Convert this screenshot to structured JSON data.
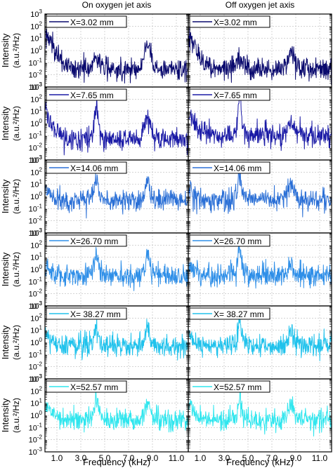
{
  "figure": {
    "col_titles": [
      "On oxygen jet axis",
      "Off oxygen jet axis"
    ],
    "xlabel": "Frequency (kHz)",
    "ylabel_line1": "Intensity",
    "ylabel_line2": "(a.u.²/Hz)"
  },
  "chart_data": {
    "type": "line",
    "layout": "6 rows x 2 columns of spectra",
    "x_range_khz": [
      0,
      12
    ],
    "x_ticks": [
      "1.0",
      "3.0",
      "5.0",
      "7.0",
      "9.0",
      "11.0"
    ],
    "x_tick_values": [
      1,
      3,
      5,
      7,
      9,
      11
    ],
    "y_scale": "log",
    "y_range": [
      0.001,
      1000
    ],
    "y_ticks": [
      {
        "base": "10",
        "exp": "3"
      },
      {
        "base": "10",
        "exp": "2"
      },
      {
        "base": "10",
        "exp": "1"
      },
      {
        "base": "10",
        "exp": "0"
      },
      {
        "base": "10",
        "exp": "-1"
      },
      {
        "base": "10",
        "exp": "-2"
      },
      {
        "base": "10",
        "exp": "-3"
      }
    ],
    "y_tick_values": [
      1000,
      100,
      10,
      1,
      0.1,
      0.01,
      0.001
    ],
    "grid": true,
    "legend_position": "top-left",
    "rows": [
      {
        "legend": "X=3.02 mm",
        "color": "#0a0a6e",
        "on": {
          "floor": 0.03,
          "low_f_peak": 30,
          "peaks": [
            {
              "f": 4.3,
              "amp": 0.2
            },
            {
              "f": 8.6,
              "amp": 3
            }
          ]
        },
        "off": {
          "floor": 0.03,
          "low_f_peak": 20,
          "peaks": [
            {
              "f": 4.3,
              "amp": 0.1
            },
            {
              "f": 8.6,
              "amp": 1
            }
          ]
        }
      },
      {
        "legend": "X=7.65 mm",
        "color": "#1a1aa6",
        "on": {
          "floor": 0.05,
          "low_f_peak": 8,
          "peaks": [
            {
              "f": 4.3,
              "amp": 20
            },
            {
              "f": 8.6,
              "amp": 3
            }
          ]
        },
        "off": {
          "floor": 0.1,
          "low_f_peak": 5,
          "peaks": [
            {
              "f": 4.3,
              "amp": 50
            },
            {
              "f": 8.6,
              "amp": 1
            }
          ]
        }
      },
      {
        "legend": "X=14.06 mm",
        "color": "#2a6fd6",
        "on": {
          "floor": 0.5,
          "low_f_peak": 5,
          "peaks": [
            {
              "f": 4.3,
              "amp": 20
            },
            {
              "f": 8.6,
              "amp": 20
            }
          ]
        },
        "off": {
          "floor": 0.5,
          "low_f_peak": 5,
          "peaks": [
            {
              "f": 4.3,
              "amp": 50
            },
            {
              "f": 8.6,
              "amp": 8
            }
          ]
        }
      },
      {
        "legend": "X=26.70 mm",
        "color": "#2f8fe8",
        "on": {
          "floor": 0.3,
          "low_f_peak": 3,
          "peaks": [
            {
              "f": 4.3,
              "amp": 20
            },
            {
              "f": 8.6,
              "amp": 30
            }
          ]
        },
        "off": {
          "floor": 0.3,
          "low_f_peak": 3,
          "peaks": [
            {
              "f": 4.3,
              "amp": 30
            },
            {
              "f": 8.6,
              "amp": 3
            }
          ]
        }
      },
      {
        "legend": "X= 38.27 mm",
        "color": "#20c2ec",
        "on": {
          "floor": 0.5,
          "low_f_peak": 5,
          "peaks": [
            {
              "f": 4.3,
              "amp": 20
            },
            {
              "f": 8.6,
              "amp": 30
            }
          ]
        },
        "off": {
          "floor": 0.5,
          "low_f_peak": 5,
          "peaks": [
            {
              "f": 4.3,
              "amp": 30
            },
            {
              "f": 8.6,
              "amp": 5
            }
          ]
        }
      },
      {
        "legend": "X=52.57 mm",
        "color": "#2fe6ee",
        "on": {
          "floor": 0.4,
          "low_f_peak": 10,
          "peaks": [
            {
              "f": 4.3,
              "amp": 20
            },
            {
              "f": 8.6,
              "amp": 8
            }
          ]
        },
        "off": {
          "floor": 0.4,
          "low_f_peak": 10,
          "peaks": [
            {
              "f": 4.3,
              "amp": 30
            },
            {
              "f": 8.6,
              "amp": 5
            }
          ]
        }
      }
    ]
  }
}
